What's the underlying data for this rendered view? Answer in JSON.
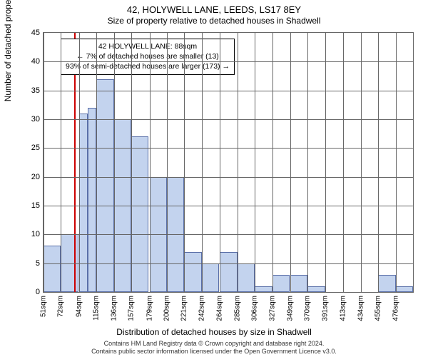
{
  "title": "42, HOLYWELL LANE, LEEDS, LS17 8EY",
  "subtitle": "Size of property relative to detached houses in Shadwell",
  "ylabel": "Number of detached properties",
  "xlabel": "Distribution of detached houses by size in Shadwell",
  "credits_line1": "Contains HM Land Registry data © Crown copyright and database right 2024.",
  "credits_line2": "Contains public sector information licensed under the Open Government Licence v3.0.",
  "annotation": {
    "line1": "42 HOLYWELL LANE: 88sqm",
    "line2": "← 7% of detached houses are smaller (13)",
    "line3": "93% of semi-detached houses are larger (173) →"
  },
  "chart": {
    "type": "histogram",
    "ylim": [
      0,
      45
    ],
    "ytick_step": 5,
    "x_ticks": [
      51,
      72,
      94,
      115,
      136,
      157,
      179,
      200,
      221,
      242,
      264,
      285,
      306,
      327,
      349,
      370,
      391,
      413,
      434,
      455,
      476
    ],
    "x_unit": "sqm",
    "marker_x": 88,
    "bars": [
      {
        "x": 51,
        "h": 8
      },
      {
        "x": 72,
        "h": 10
      },
      {
        "x": 94,
        "h": 31
      },
      {
        "x": 104.5,
        "h": 32
      },
      {
        "x": 115,
        "h": 37
      },
      {
        "x": 136,
        "h": 30
      },
      {
        "x": 157,
        "h": 27
      },
      {
        "x": 179,
        "h": 20
      },
      {
        "x": 200,
        "h": 20
      },
      {
        "x": 221,
        "h": 7
      },
      {
        "x": 242,
        "h": 5
      },
      {
        "x": 264,
        "h": 7
      },
      {
        "x": 285,
        "h": 5
      },
      {
        "x": 306,
        "h": 1
      },
      {
        "x": 327,
        "h": 3
      },
      {
        "x": 349,
        "h": 3
      },
      {
        "x": 370,
        "h": 1
      },
      {
        "x": 455,
        "h": 3
      },
      {
        "x": 476,
        "h": 1
      }
    ],
    "bar_fill": "#c3d3ee",
    "bar_border": "#5a6fa8",
    "grid_color": "#666666",
    "marker_color": "#cc0000",
    "background": "#ffffff",
    "plot_border": "#666666",
    "title_fontsize": 13,
    "subtitle_fontsize": 12,
    "label_fontsize": 12,
    "tick_fontsize": 11,
    "anno_fontsize": 10.5
  }
}
